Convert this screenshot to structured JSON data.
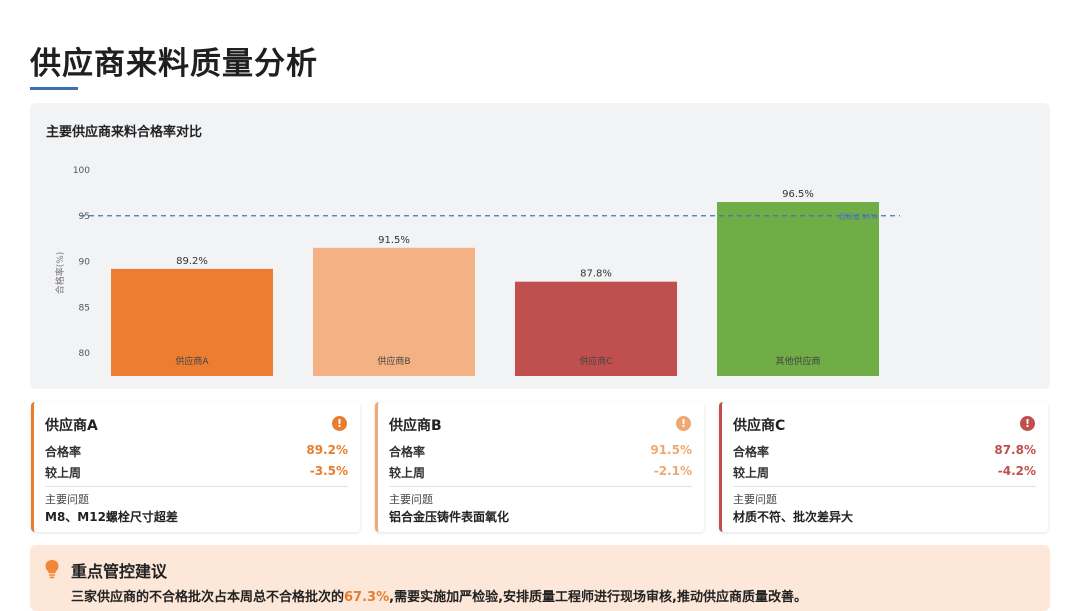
{
  "page": {
    "title": "供应商来料质量分析"
  },
  "chart_data": {
    "type": "bar",
    "title": "主要供应商来料合格率对比",
    "ylabel": "合格率(%)",
    "xlabel": "",
    "categories": [
      "供应商A",
      "供应商B",
      "供应商C",
      "其他供应商"
    ],
    "values": [
      89.2,
      91.5,
      87.8,
      96.5
    ],
    "value_labels": [
      "89.2%",
      "91.5%",
      "87.8%",
      "96.5%"
    ],
    "colors": [
      "#ed7d31",
      "#f4b183",
      "#c0504d",
      "#70ad47"
    ],
    "ylim": [
      77.5,
      100
    ],
    "yticks": [
      80,
      85,
      90,
      95,
      100
    ],
    "target_line": {
      "value": 95,
      "label": "目标值 95%",
      "color": "#4472c4"
    },
    "grid": false,
    "legend": "none"
  },
  "suppliers": [
    {
      "name": "供应商A",
      "accent": "#e77d2e",
      "rate_label": "合格率",
      "rate_value": "89.2%",
      "change_label": "较上周",
      "change_value": "-3.5%",
      "issue_label": "主要问题",
      "issue_text": "M8、M12螺栓尺寸超差",
      "alert_icon": "!"
    },
    {
      "name": "供应商B",
      "accent": "#f0a872",
      "rate_label": "合格率",
      "rate_value": "91.5%",
      "change_label": "较上周",
      "change_value": "-2.1%",
      "issue_label": "主要问题",
      "issue_text": "铝合金压铸件表面氧化",
      "alert_icon": "!"
    },
    {
      "name": "供应商C",
      "accent": "#c0504d",
      "rate_label": "合格率",
      "rate_value": "87.8%",
      "change_label": "较上周",
      "change_value": "-4.2%",
      "issue_label": "主要问题",
      "issue_text": "材质不符、批次差异大",
      "alert_icon": "!"
    }
  ],
  "advice": {
    "icon": "lightbulb-icon",
    "title": "重点管控建议",
    "text_before": "三家供应商的不合格批次占本周总不合格批次的",
    "highlight": "67.3%",
    "text_after": ",需要实施加严检验,安排质量工程师进行现场审核,推动供应商质量改善。"
  }
}
